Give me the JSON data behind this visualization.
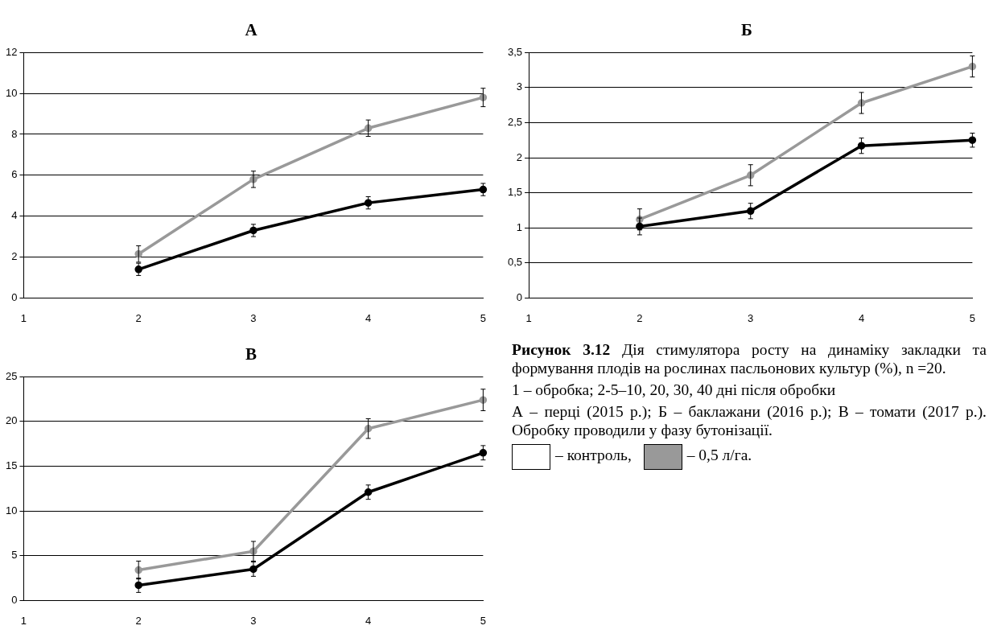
{
  "chart_data": [
    {
      "type": "line",
      "title": "А",
      "categories": [
        "1",
        "2",
        "3",
        "4",
        "5"
      ],
      "ylim": [
        0,
        12
      ],
      "yticks": [
        0,
        2,
        4,
        6,
        8,
        10,
        12
      ],
      "grid": "y",
      "marker": "circle",
      "series": [
        {
          "color": "#000000",
          "values": [
            null,
            1.4,
            3.3,
            4.65,
            5.3
          ],
          "errors": [
            null,
            0.3,
            0.3,
            0.3,
            0.3
          ]
        },
        {
          "color": "#999999",
          "values": [
            null,
            2.15,
            5.8,
            8.3,
            9.8
          ],
          "errors": [
            null,
            0.4,
            0.4,
            0.4,
            0.45
          ]
        }
      ]
    },
    {
      "type": "line",
      "title": "Б",
      "categories": [
        "1",
        "2",
        "3",
        "4",
        "5"
      ],
      "ylim": [
        0,
        3.5
      ],
      "yticks": [
        0,
        {
          "value": 0.5,
          "label": "0,5"
        },
        1,
        {
          "value": 1.5,
          "label": "1,5"
        },
        2,
        {
          "value": 2.5,
          "label": "2,5"
        },
        3,
        {
          "value": 3.5,
          "label": "3,5"
        }
      ],
      "grid": "y",
      "marker": "circle",
      "series": [
        {
          "color": "#000000",
          "values": [
            null,
            1.02,
            1.24,
            2.17,
            2.25
          ],
          "errors": [
            null,
            0.12,
            0.11,
            0.11,
            0.1
          ]
        },
        {
          "color": "#999999",
          "values": [
            null,
            1.12,
            1.75,
            2.78,
            3.3
          ],
          "errors": [
            null,
            0.15,
            0.15,
            0.15,
            0.15
          ]
        }
      ]
    },
    {
      "type": "line",
      "title": "В",
      "categories": [
        "1",
        "2",
        "3",
        "4",
        "5"
      ],
      "ylim": [
        0,
        25
      ],
      "yticks": [
        0,
        5,
        10,
        15,
        20,
        25
      ],
      "grid": "y",
      "marker": "circle",
      "series": [
        {
          "color": "#000000",
          "values": [
            null,
            1.7,
            3.5,
            12.1,
            16.5
          ],
          "errors": [
            null,
            0.8,
            0.8,
            0.8,
            0.8
          ]
        },
        {
          "color": "#999999",
          "values": [
            null,
            3.4,
            5.5,
            19.2,
            22.4
          ],
          "errors": [
            null,
            1.0,
            1.1,
            1.1,
            1.2
          ]
        }
      ]
    },
    {
      "type": "other",
      "title": "Рисунок 3.12",
      "annotations": [
        "Дія стимулятора росту на динаміку закладки та формування плодів на рослинах пасльонових культур (%), n =20.",
        "1 – обробка; 2-5–10, 20, 30, 40 дні після обробки",
        "А – перці (2015 р.); Б – баклажани (2016 р.); В – томати (2017 р.). Обробку проводили у фазу бутонізації.",
        "– контроль,",
        "– 0,5 л/га."
      ]
    }
  ]
}
